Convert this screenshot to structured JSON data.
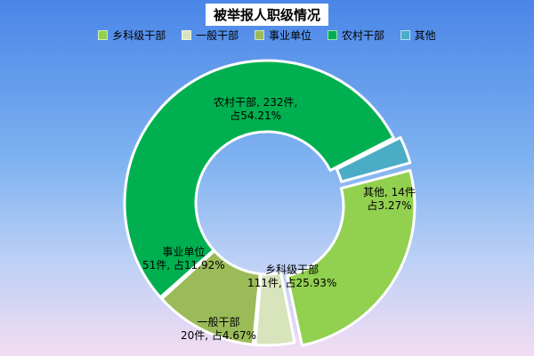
{
  "chart_data": {
    "type": "pie",
    "variant": "donut",
    "title": "被举报人职级情况",
    "legend_position": "top",
    "slices": [
      {
        "name": "乡科级干部",
        "value": 111,
        "percent": 25.93,
        "color": "#92d050",
        "label_line1": "乡科级干部",
        "label_line2": "111件, 占25.93%"
      },
      {
        "name": "一般干部",
        "value": 20,
        "percent": 4.67,
        "color": "#d8e4bc",
        "label_line1": "一般干部",
        "label_line2": "20件, 占4.67%"
      },
      {
        "name": "事业单位",
        "value": 51,
        "percent": 11.92,
        "color": "#9bbb59",
        "label_line1": "事业单位",
        "label_line2": "51件, 占11.92%"
      },
      {
        "name": "农村干部",
        "value": 232,
        "percent": 54.21,
        "color": "#00b050",
        "label_line1": "农村干部, 232件,",
        "label_line2": "占54.21%"
      },
      {
        "name": "其他",
        "value": 14,
        "percent": 3.27,
        "color": "#4bacc6",
        "label_line1": "其他, 14件",
        "label_line2": "占3.27%"
      }
    ]
  }
}
